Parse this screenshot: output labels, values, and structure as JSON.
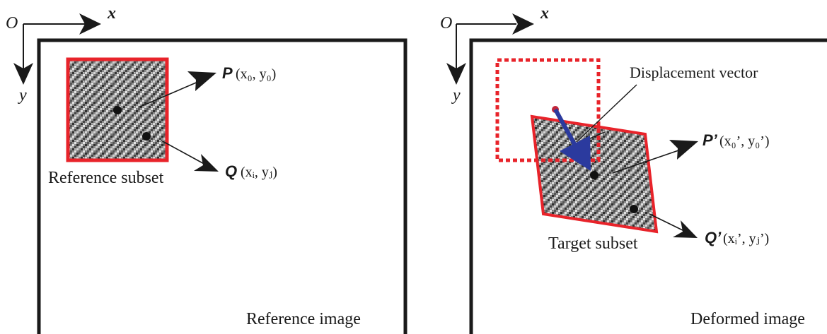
{
  "axes": {
    "origin_label": "O",
    "x_label": "x",
    "y_label": "y"
  },
  "left_panel": {
    "caption": "Reference image",
    "subset_label": "Reference subset",
    "point_p": {
      "name": "P",
      "coords": "(x₀, y₀)"
    },
    "point_q": {
      "name": "Q",
      "coords": "(xᵢ, yⱼ)"
    }
  },
  "right_panel": {
    "caption": "Deformed image",
    "subset_label": "Target subset",
    "displacement_label": "Displacement vector",
    "point_p": {
      "name": "P’",
      "coords": "(x₀’, y₀’)"
    },
    "point_q": {
      "name": "Q’",
      "coords": "(xᵢ’, yⱼ’)"
    }
  },
  "colors": {
    "subset_border": "#e8232a",
    "displacement_arrow": "#2b3a9e",
    "frame": "#1a1a1a",
    "speckle_dark": "#3a3a3a",
    "speckle_light": "#d8d8d8"
  }
}
